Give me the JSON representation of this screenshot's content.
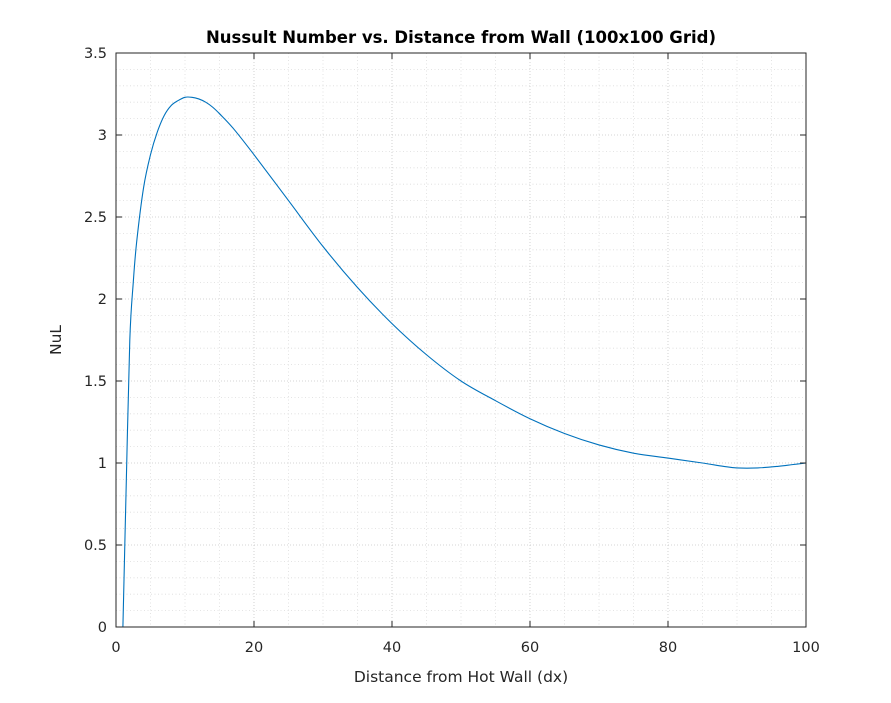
{
  "chart_data": {
    "type": "line",
    "title": "Nussult Number vs. Distance from Wall (100x100 Grid)",
    "xlabel": "Distance from Hot Wall (dx)",
    "ylabel": "NuL",
    "xlim": [
      0,
      100
    ],
    "ylim": [
      0,
      3.5
    ],
    "xticks": [
      0,
      20,
      40,
      60,
      80,
      100
    ],
    "xtick_labels": [
      "0",
      "20",
      "40",
      "60",
      "80",
      "100"
    ],
    "yticks": [
      0,
      0.5,
      1,
      1.5,
      2,
      2.5,
      3,
      3.5
    ],
    "ytick_labels": [
      "0",
      "0.5",
      "1",
      "1.5",
      "2",
      "2.5",
      "3",
      "3.5"
    ],
    "grid": true,
    "minor_grid": true,
    "series": [
      {
        "name": "NuL",
        "color": "#0072BD",
        "x": [
          1,
          1.5,
          2,
          2.5,
          3,
          4,
          5,
          6,
          7,
          8,
          9,
          10,
          11,
          12,
          13,
          14,
          15,
          17,
          20,
          25,
          30,
          35,
          40,
          45,
          50,
          55,
          60,
          65,
          70,
          75,
          80,
          85,
          88,
          90,
          93,
          96,
          98,
          100
        ],
        "y": [
          0,
          0.9,
          1.75,
          2.1,
          2.35,
          2.68,
          2.88,
          3.02,
          3.12,
          3.18,
          3.21,
          3.23,
          3.23,
          3.22,
          3.2,
          3.17,
          3.13,
          3.04,
          2.88,
          2.6,
          2.32,
          2.07,
          1.85,
          1.66,
          1.5,
          1.38,
          1.27,
          1.18,
          1.11,
          1.06,
          1.03,
          1.0,
          0.98,
          0.97,
          0.97,
          0.98,
          0.99,
          1.0
        ]
      }
    ]
  }
}
